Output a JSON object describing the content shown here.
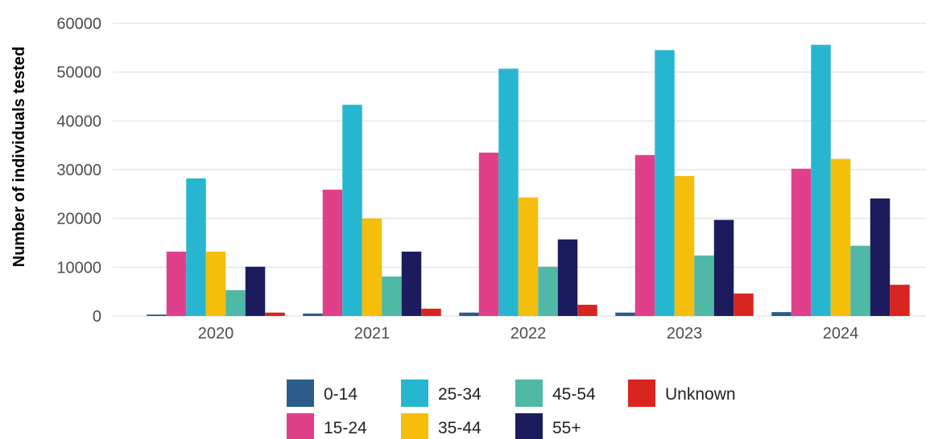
{
  "chart_data": {
    "type": "bar",
    "title": "",
    "xlabel": "",
    "ylabel": "Number of individuals tested",
    "ylim": [
      0,
      60000
    ],
    "yticks": [
      "0",
      "10000",
      "20000",
      "30000",
      "40000",
      "50000",
      "60000"
    ],
    "categories": [
      "2020",
      "2021",
      "2022",
      "2023",
      "2024"
    ],
    "grid": true,
    "legend_position": "bottom",
    "series": [
      {
        "name": "0-14",
        "color": "#2b5c8a",
        "values": [
          300,
          500,
          700,
          700,
          800
        ]
      },
      {
        "name": "15-24",
        "color": "#e0408a",
        "values": [
          13200,
          25900,
          33500,
          33000,
          30200
        ]
      },
      {
        "name": "25-34",
        "color": "#27b6d0",
        "values": [
          28200,
          43300,
          50700,
          54500,
          55600
        ]
      },
      {
        "name": "35-44",
        "color": "#f5be0b",
        "values": [
          13200,
          20000,
          24300,
          28700,
          32200
        ]
      },
      {
        "name": "45-54",
        "color": "#4fb9a6",
        "values": [
          5300,
          8100,
          10100,
          12400,
          14400
        ]
      },
      {
        "name": "55+",
        "color": "#1c1b5e",
        "values": [
          10100,
          13200,
          15700,
          19700,
          24100
        ]
      },
      {
        "name": "Unknown",
        "color": "#d9251f",
        "values": [
          700,
          1500,
          2300,
          4600,
          6400
        ]
      }
    ]
  }
}
